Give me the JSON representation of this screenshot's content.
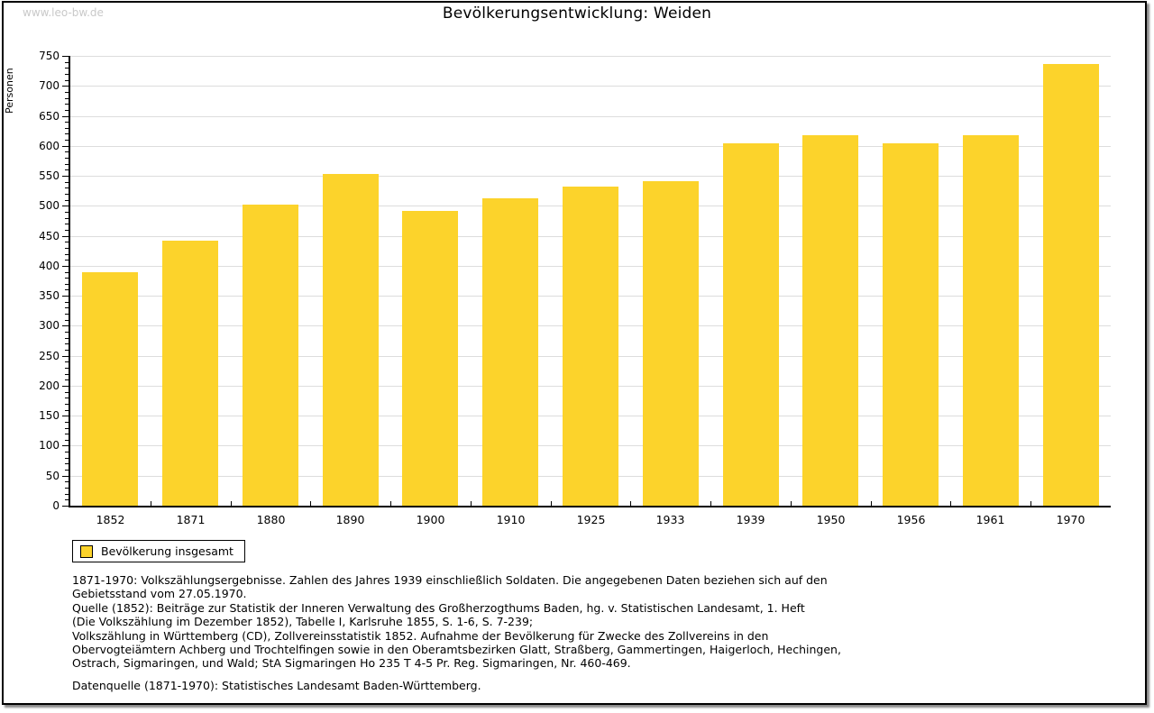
{
  "page": {
    "watermark": "www.leo-bw.de"
  },
  "chart_data": {
    "type": "bar",
    "title": "Bevölkerungsentwicklung: Weiden",
    "xlabel": "",
    "ylabel": "Personen",
    "categories": [
      "1852",
      "1871",
      "1880",
      "1890",
      "1900",
      "1910",
      "1925",
      "1933",
      "1939",
      "1950",
      "1956",
      "1961",
      "1970"
    ],
    "series": [
      {
        "name": "Bevölkerung insgesamt",
        "color": "#FCD32B",
        "values": [
          390,
          442,
          502,
          553,
          491,
          512,
          532,
          541,
          604,
          618,
          604,
          618,
          737
        ]
      }
    ],
    "ylim": [
      0,
      750
    ],
    "y_tick_step": 50,
    "y_minor_tick_step": 10,
    "grid": true,
    "grid_color": "#dddddd",
    "axis_color": "#000000",
    "legend_position": "bottom-left"
  },
  "footer": {
    "note_lines": [
      "1871-1970: Volkszählungsergebnisse. Zahlen des Jahres 1939 einschließlich Soldaten. Die angegebenen Daten beziehen sich auf den",
      "Gebietsstand vom 27.05.1970.",
      "Quelle (1852): Beiträge zur Statistik der Inneren Verwaltung des Großherzogthums Baden, hg. v. Statistischen Landesamt, 1. Heft",
      "(Die Volkszählung im Dezember 1852), Tabelle I, Karlsruhe 1855, S. 1-6, S. 7-239;",
      "Volkszählung in Württemberg (CD), Zollvereinsstatistik 1852. Aufnahme der Bevölkerung für Zwecke des Zollvereins in den",
      "Obervogteiämtern Achberg und Trochtelfingen sowie in den Oberamtsbezirken Glatt, Straßberg, Gammertingen, Haigerloch, Hechingen,",
      "Ostrach, Sigmaringen, und Wald; StA Sigmaringen Ho 235 T 4-5 Pr. Reg. Sigmaringen, Nr. 460-469."
    ],
    "source": "Datenquelle (1871-1970): Statistisches Landesamt Baden-Württemberg."
  }
}
